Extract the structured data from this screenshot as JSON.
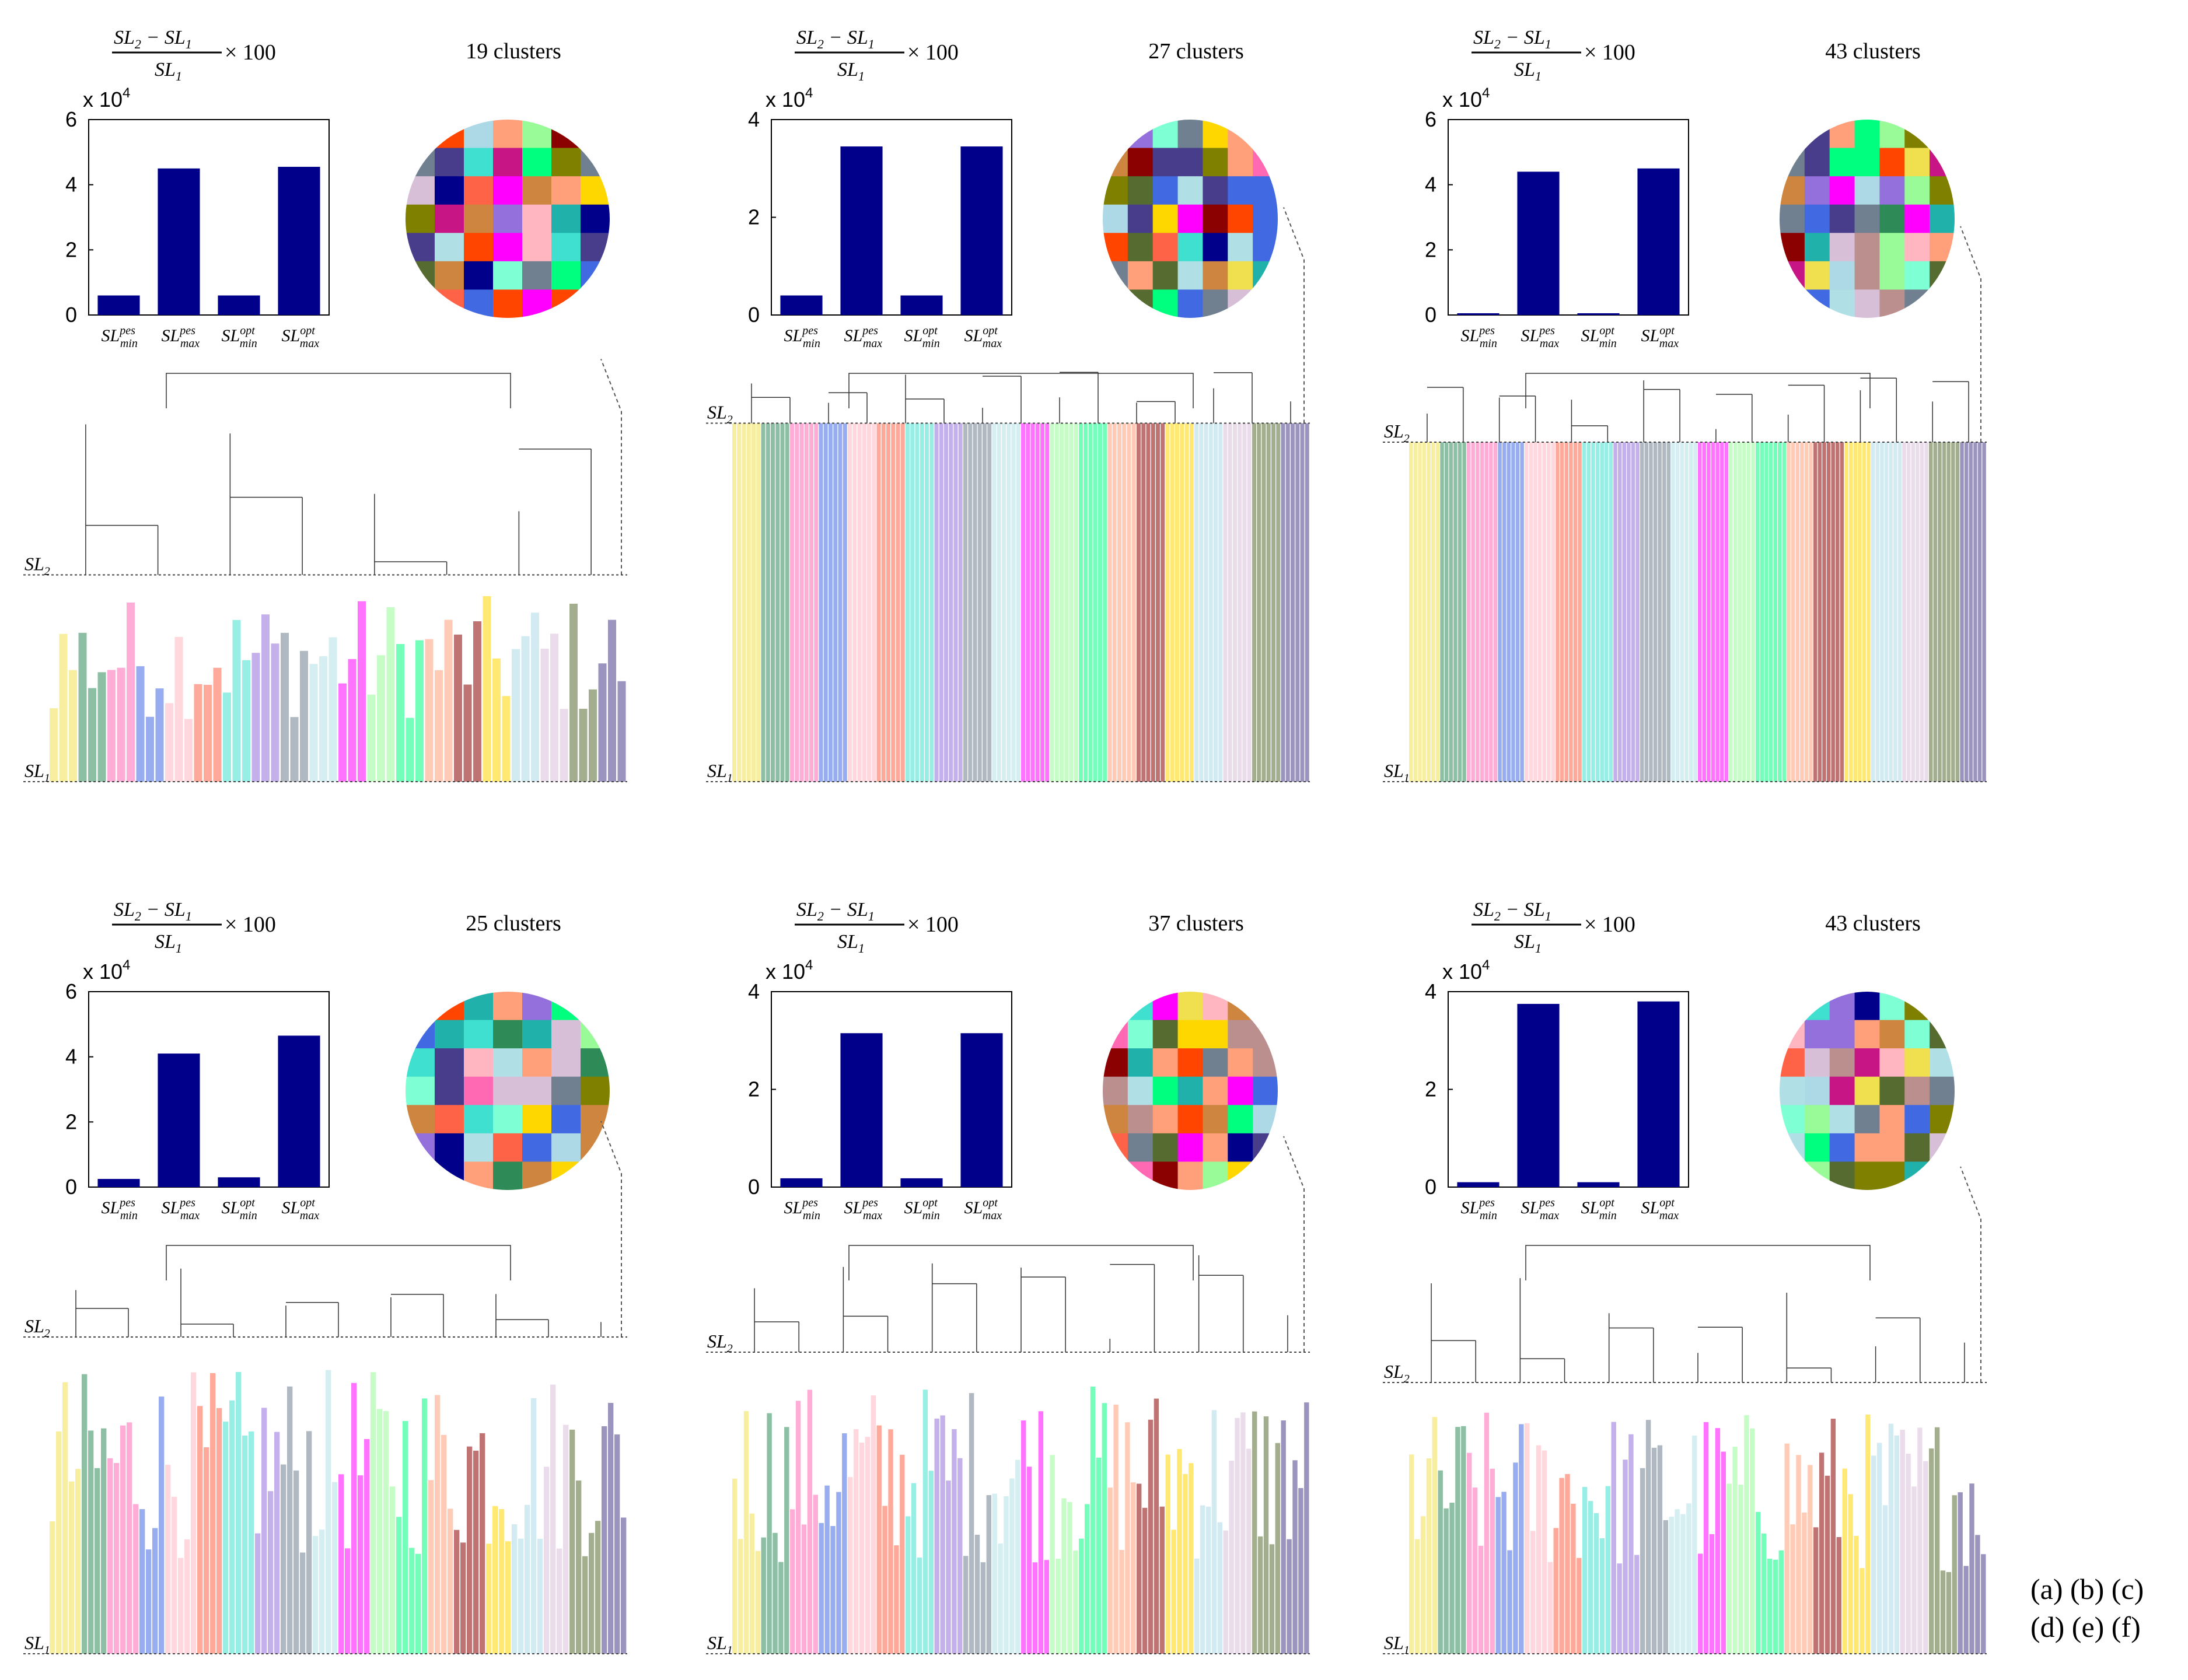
{
  "formula": {
    "numerator": [
      "SL",
      "2",
      " − SL",
      "1"
    ],
    "denominator": [
      "SL",
      "1"
    ],
    "times": "× 100"
  },
  "bar_categories": [
    {
      "base": "SL",
      "sup": "pes",
      "sub": "min"
    },
    {
      "base": "SL",
      "sup": "pes",
      "sub": "max"
    },
    {
      "base": "SL",
      "sup": "opt",
      "sub": "min"
    },
    {
      "base": "SL",
      "sup": "opt",
      "sub": "max"
    }
  ],
  "exponent_label": {
    "base": "x 10",
    "exp": "4"
  },
  "level_labels": {
    "upper": {
      "base": "SL",
      "sub": "2"
    },
    "lower": {
      "base": "SL",
      "sub": "1"
    }
  },
  "captions": {
    "row1": "(a) (b) (c)",
    "row2": "(d) (e) (f)"
  },
  "palette": [
    "#f0e050",
    "#2e8b57",
    "#ff69b4",
    "#4169e1",
    "#ffb6c1",
    "#ff6347",
    "#40e0d0",
    "#9370db",
    "#708090",
    "#b0e0e6",
    "#ff00ff",
    "#98fb98",
    "#00ff7f",
    "#ffa07a",
    "#8b0000",
    "#ffd700",
    "#add8e6",
    "#d8bfd8",
    "#556b2f",
    "#483d8b",
    "#c71585",
    "#20b2aa",
    "#cd853f",
    "#00008b",
    "#ff4500",
    "#7fffd4",
    "#bc8f8f",
    "#808000"
  ],
  "chart_data": [
    {
      "type": "bar",
      "id": "a",
      "title": "19 clusters",
      "ylim": [
        0,
        6
      ],
      "yticks": [
        0,
        2,
        4,
        6
      ],
      "y_exponent": 4,
      "categories": [
        "SL_min^pes",
        "SL_max^pes",
        "SL_min^opt",
        "SL_max^opt"
      ],
      "values": [
        0.6,
        4.5,
        0.6,
        4.55
      ],
      "bar_color": "#00008b",
      "dendrogram": {
        "leaves": 60,
        "cut_level_fraction": 0.53,
        "style": "sparse"
      }
    },
    {
      "type": "bar",
      "id": "b",
      "title": "27 clusters",
      "ylim": [
        0,
        4
      ],
      "yticks": [
        0,
        2,
        4
      ],
      "y_exponent": 4,
      "categories": [
        "SL_min^pes",
        "SL_max^pes",
        "SL_min^opt",
        "SL_max^opt"
      ],
      "values": [
        0.4,
        3.45,
        0.4,
        3.45
      ],
      "bar_color": "#00008b",
      "dendrogram": {
        "leaves": 120,
        "cut_level_fraction": 0.93,
        "style": "dense"
      }
    },
    {
      "type": "bar",
      "id": "c",
      "title": "43 clusters",
      "ylim": [
        0,
        6
      ],
      "yticks": [
        0,
        2,
        4,
        6
      ],
      "y_exponent": 4,
      "categories": [
        "SL_min^pes",
        "SL_max^pes",
        "SL_min^opt",
        "SL_max^opt"
      ],
      "values": [
        0.05,
        4.4,
        0.05,
        4.5
      ],
      "bar_color": "#00008b",
      "dendrogram": {
        "leaves": 130,
        "cut_level_fraction": 0.88,
        "style": "dense"
      }
    },
    {
      "type": "bar",
      "id": "d",
      "title": "25 clusters",
      "ylim": [
        0,
        6
      ],
      "yticks": [
        0,
        2,
        4,
        6
      ],
      "y_exponent": 4,
      "categories": [
        "SL_min^pes",
        "SL_max^pes",
        "SL_min^opt",
        "SL_max^opt"
      ],
      "values": [
        0.25,
        4.1,
        0.3,
        4.65
      ],
      "bar_color": "#00008b",
      "dendrogram": {
        "leaves": 90,
        "cut_level_fraction": 0.82,
        "style": "medium"
      }
    },
    {
      "type": "bar",
      "id": "e",
      "title": "37 clusters",
      "ylim": [
        0,
        4
      ],
      "yticks": [
        0,
        2,
        4
      ],
      "y_exponent": 4,
      "categories": [
        "SL_min^pes",
        "SL_max^pes",
        "SL_min^opt",
        "SL_max^opt"
      ],
      "values": [
        0.18,
        3.15,
        0.18,
        3.15
      ],
      "bar_color": "#00008b",
      "dendrogram": {
        "leaves": 100,
        "cut_level_fraction": 0.78,
        "style": "medium"
      }
    },
    {
      "type": "bar",
      "id": "f",
      "title": "43 clusters",
      "ylim": [
        0,
        4
      ],
      "yticks": [
        0,
        2,
        4
      ],
      "y_exponent": 4,
      "categories": [
        "SL_min^pes",
        "SL_max^pes",
        "SL_min^opt",
        "SL_max^opt"
      ],
      "values": [
        0.1,
        3.75,
        0.1,
        3.8
      ],
      "bar_color": "#00008b",
      "dendrogram": {
        "leaves": 100,
        "cut_level_fraction": 0.7,
        "style": "medium"
      }
    }
  ]
}
